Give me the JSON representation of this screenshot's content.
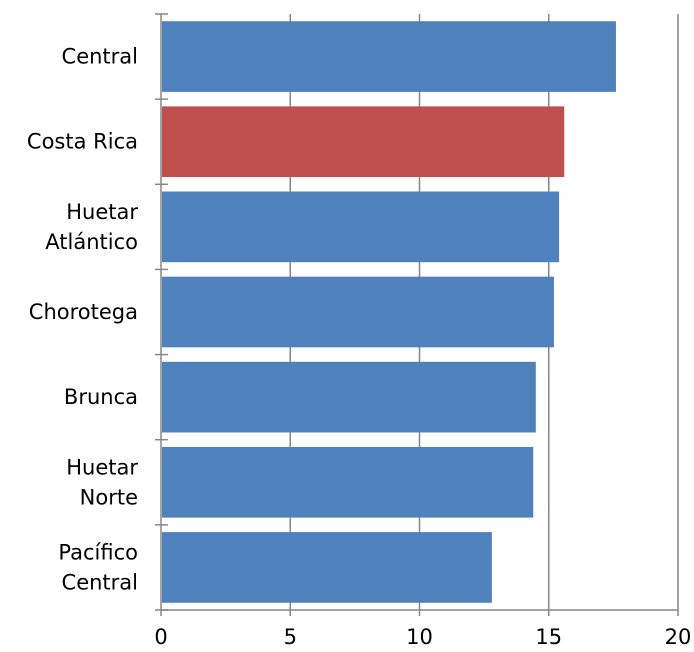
{
  "chart_data": {
    "type": "bar",
    "orientation": "horizontal",
    "categories": [
      [
        "Central"
      ],
      [
        "Costa Rica"
      ],
      [
        "Huetar",
        "Atlántico"
      ],
      [
        "Chorotega"
      ],
      [
        "Brunca"
      ],
      [
        "Huetar",
        "Norte"
      ],
      [
        "Pacífico",
        "Central"
      ]
    ],
    "values": [
      17.6,
      15.6,
      15.4,
      15.2,
      14.5,
      14.4,
      12.8
    ],
    "highlight_index": 1,
    "xlim": [
      0,
      20
    ],
    "xticks": [
      0,
      5,
      10,
      15,
      20
    ],
    "grid": "vertical",
    "legend": "none",
    "title": "",
    "xlabel": "",
    "ylabel": "",
    "colors": {
      "bar": "#4f81bd",
      "highlight": "#c0504d",
      "grid": "#868686"
    }
  }
}
